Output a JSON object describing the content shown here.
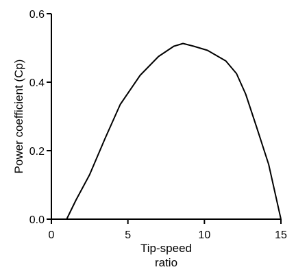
{
  "chart_data": {
    "type": "line",
    "title": "",
    "xlabel_lines": [
      "Tip-speed",
      "ratio"
    ],
    "ylabel": "Power coefficient (Cp)",
    "xlim": [
      0,
      15
    ],
    "ylim": [
      0,
      0.6
    ],
    "xticks": [
      "0",
      "5",
      "10",
      "15"
    ],
    "yticks": [
      "0.0",
      "0.2",
      "0.4",
      "0.6"
    ],
    "grid": false,
    "legend": "none",
    "line_color": "#000000",
    "series": [
      {
        "x": [
          1.0,
          1.6,
          2.5,
          3.5,
          4.5,
          5.8,
          7.0,
          8.0,
          8.6,
          9.3,
          10.2,
          11.4,
          12.1,
          12.7,
          13.4,
          14.2,
          15.0
        ],
        "y": [
          0.0,
          0.055,
          0.13,
          0.235,
          0.335,
          0.42,
          0.475,
          0.505,
          0.513,
          0.505,
          0.493,
          0.462,
          0.425,
          0.365,
          0.27,
          0.16,
          0.0
        ]
      }
    ]
  }
}
